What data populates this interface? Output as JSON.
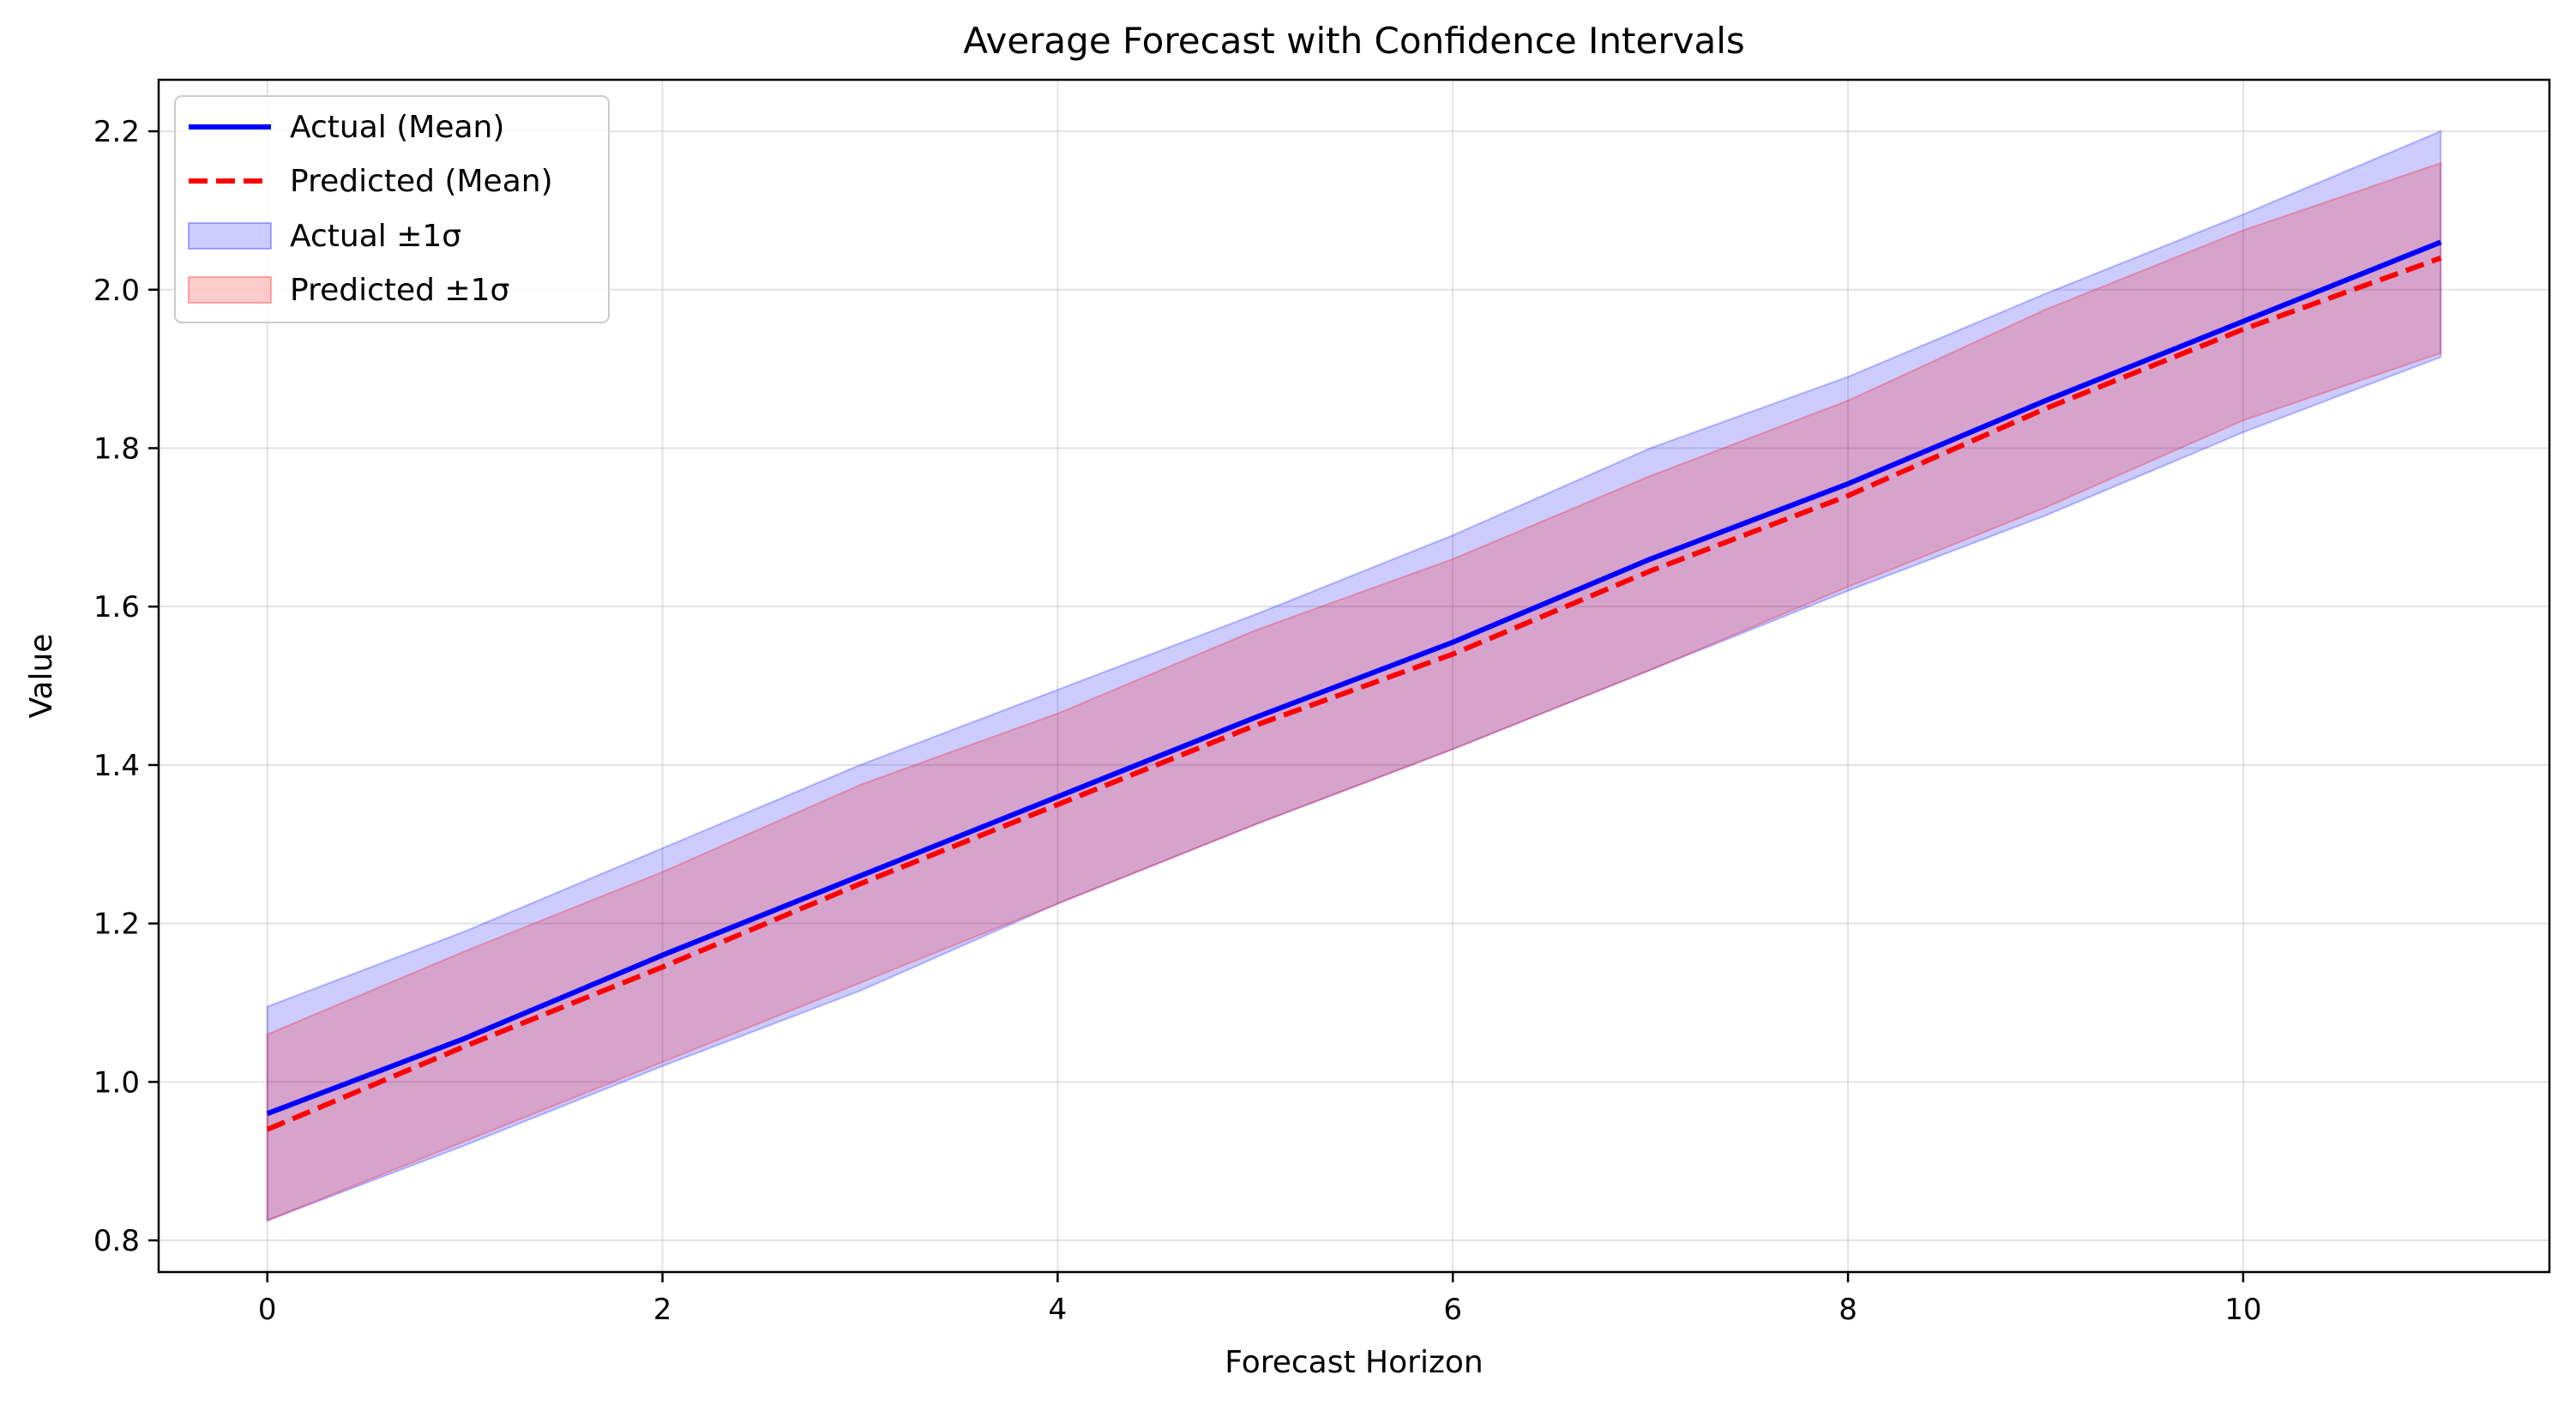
{
  "chart_data": {
    "type": "line",
    "title": "Average Forecast with Confidence Intervals",
    "xlabel": "Forecast Horizon",
    "ylabel": "Value",
    "xlim": [
      -0.55,
      11.55
    ],
    "ylim": [
      0.76,
      2.265
    ],
    "xticks": [
      0,
      2,
      4,
      6,
      8,
      10
    ],
    "xtick_labels": [
      "0",
      "2",
      "4",
      "6",
      "8",
      "10"
    ],
    "yticks": [
      0.8,
      1.0,
      1.2,
      1.4,
      1.6,
      1.8,
      2.0,
      2.2
    ],
    "ytick_labels": [
      "0.8",
      "1.0",
      "1.2",
      "1.4",
      "1.6",
      "1.8",
      "2.0",
      "2.2"
    ],
    "grid": true,
    "legend_position": "top-left",
    "x": [
      0,
      1,
      2,
      3,
      4,
      5,
      6,
      7,
      8,
      9,
      10,
      11
    ],
    "series": [
      {
        "name": "Actual (Mean)",
        "kind": "line",
        "style": "solid",
        "color": "#0000ff",
        "values": [
          0.96,
          1.055,
          1.16,
          1.26,
          1.36,
          1.46,
          1.555,
          1.66,
          1.755,
          1.86,
          1.96,
          2.06
        ]
      },
      {
        "name": "Predicted (Mean)",
        "kind": "line",
        "style": "dashed",
        "color": "#ff0000",
        "values": [
          0.94,
          1.045,
          1.145,
          1.25,
          1.35,
          1.45,
          1.54,
          1.645,
          1.74,
          1.85,
          1.95,
          2.04
        ]
      },
      {
        "name": "Actual ±1σ",
        "kind": "band",
        "color": "#0000ff",
        "opacity": 0.2,
        "lower": [
          0.825,
          0.92,
          1.02,
          1.115,
          1.225,
          1.325,
          1.42,
          1.52,
          1.62,
          1.715,
          1.82,
          1.915
        ],
        "upper": [
          1.095,
          1.19,
          1.295,
          1.4,
          1.495,
          1.59,
          1.69,
          1.8,
          1.89,
          1.995,
          2.095,
          2.2
        ]
      },
      {
        "name": "Predicted ±1σ",
        "kind": "band",
        "color": "#ff0000",
        "opacity": 0.2,
        "lower": [
          0.825,
          0.925,
          1.025,
          1.125,
          1.225,
          1.325,
          1.42,
          1.52,
          1.625,
          1.725,
          1.835,
          1.92
        ],
        "upper": [
          1.06,
          1.165,
          1.265,
          1.375,
          1.465,
          1.57,
          1.66,
          1.765,
          1.86,
          1.975,
          2.075,
          2.16
        ]
      }
    ]
  }
}
